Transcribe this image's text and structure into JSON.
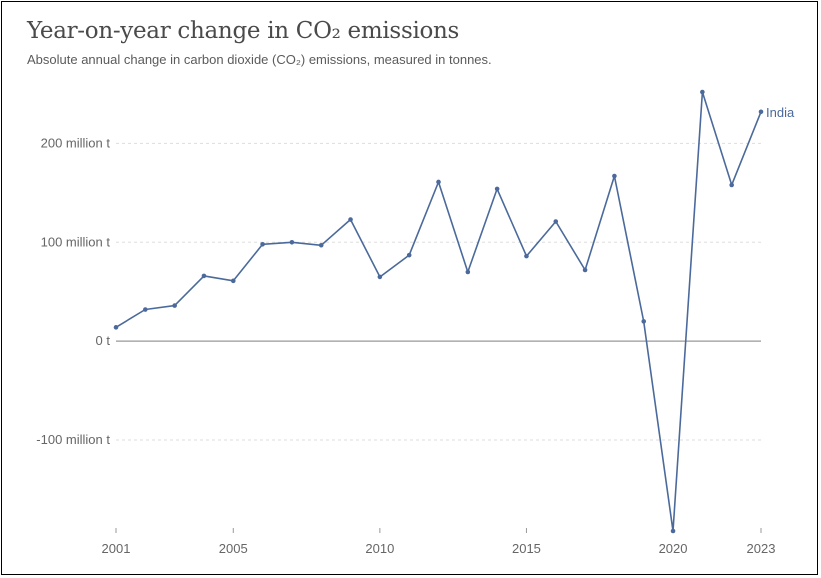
{
  "title": "Year-on-year change in CO₂ emissions",
  "subtitle": "Absolute annual change in carbon dioxide (CO₂) emissions, measured in tonnes.",
  "colors": {
    "series": "#4b6a9b",
    "grid": "#dddddd",
    "zero": "#999999",
    "text": "#666666"
  },
  "chart_data": {
    "type": "line",
    "title": "Year-on-year change in CO₂ emissions",
    "subtitle": "Absolute annual change in carbon dioxide (CO₂) emissions, measured in tonnes.",
    "xlabel": "",
    "ylabel": "",
    "xlim": [
      2001,
      2023
    ],
    "ylim": [
      -192,
      252
    ],
    "y_ticks": [
      {
        "value": -100,
        "label": "-100 million t"
      },
      {
        "value": 0,
        "label": "0 t"
      },
      {
        "value": 100,
        "label": "100 million t"
      },
      {
        "value": 200,
        "label": "200 million t"
      }
    ],
    "x_ticks": [
      {
        "value": 2001,
        "label": "2001"
      },
      {
        "value": 2005,
        "label": "2005"
      },
      {
        "value": 2010,
        "label": "2010"
      },
      {
        "value": 2015,
        "label": "2015"
      },
      {
        "value": 2020,
        "label": "2020"
      },
      {
        "value": 2023,
        "label": "2023"
      }
    ],
    "grid": true,
    "legend": "inline label at line end",
    "series": [
      {
        "name": "India",
        "x": [
          2001,
          2002,
          2003,
          2004,
          2005,
          2006,
          2007,
          2008,
          2009,
          2010,
          2011,
          2012,
          2013,
          2014,
          2015,
          2016,
          2017,
          2018,
          2019,
          2020,
          2021,
          2022,
          2023
        ],
        "values": [
          14,
          32,
          36,
          66,
          61,
          98,
          100,
          97,
          123,
          65,
          87,
          161,
          70,
          154,
          86,
          121,
          72,
          167,
          20,
          -192,
          252,
          158,
          232
        ]
      }
    ]
  }
}
